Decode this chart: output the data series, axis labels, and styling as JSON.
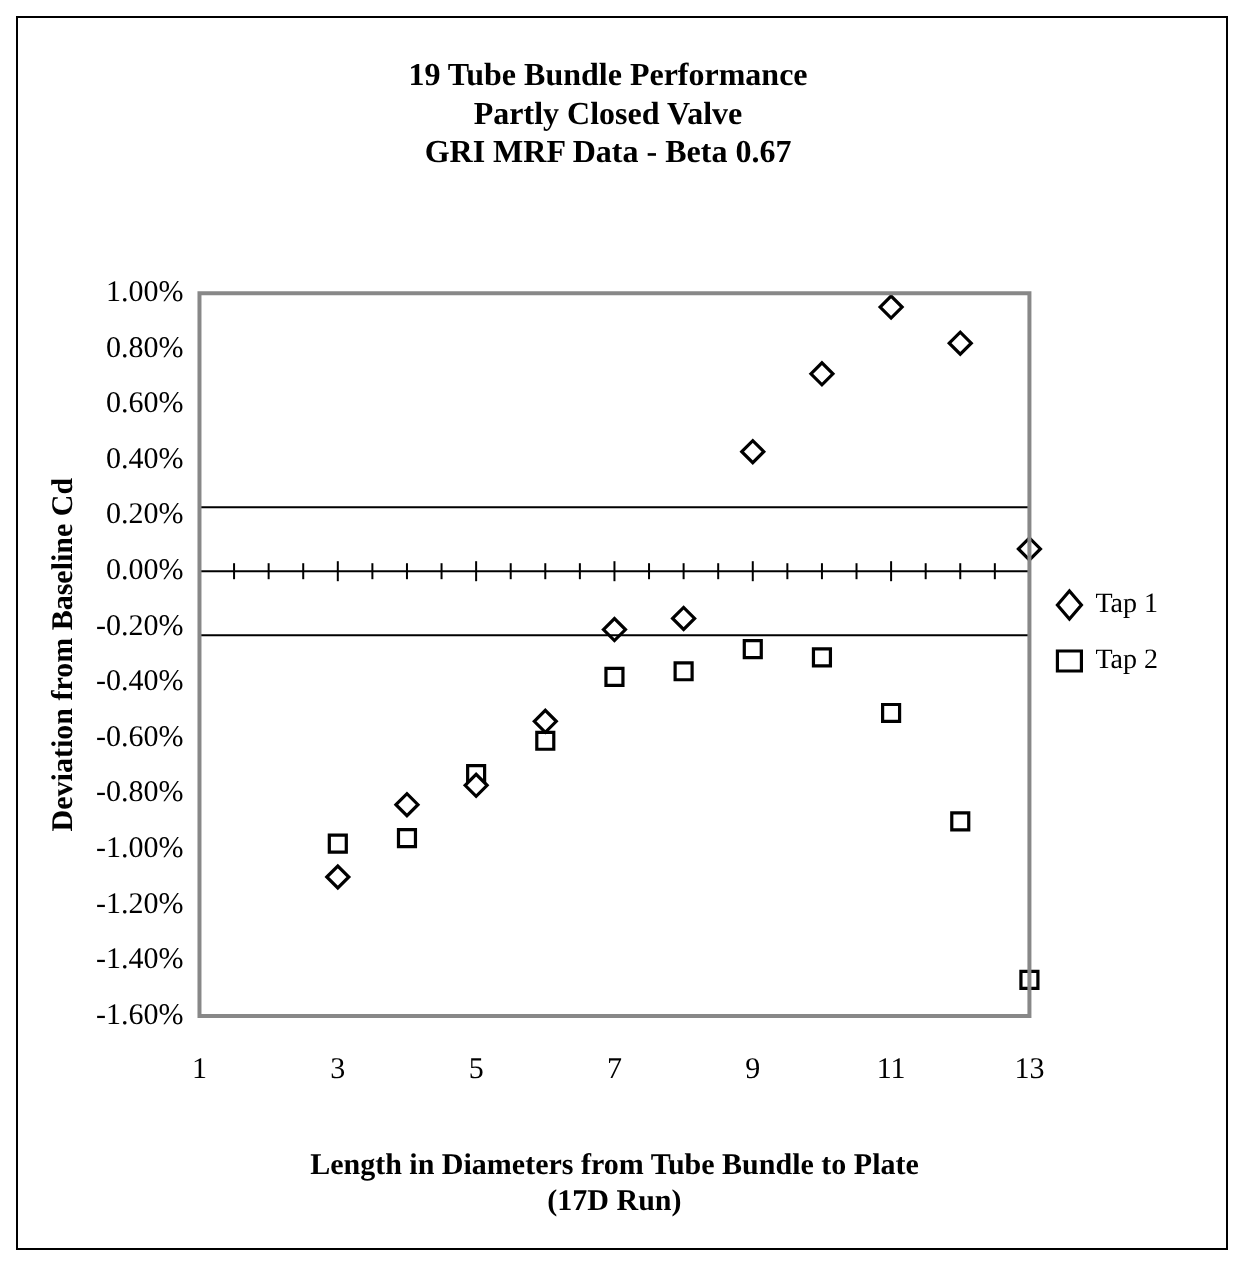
{
  "chart_data": {
    "type": "scatter",
    "title": "19 Tube Bundle Performance\nPartly Closed Valve\nGRI MRF Data - Beta 0.67",
    "xlabel": "Length in Diameters from Tube Bundle to Plate\n(17D Run)",
    "ylabel": "Deviation from Baseline Cd",
    "x": [
      3,
      4,
      5,
      6,
      7,
      8,
      9,
      10,
      11,
      12,
      13
    ],
    "series": [
      {
        "name": "Tap 1",
        "color": "#000000",
        "marker": "diamond",
        "values": [
          -1.1,
          -0.84,
          -0.77,
          -0.54,
          -0.21,
          -0.17,
          0.43,
          0.71,
          0.95,
          0.82,
          0.08
        ]
      },
      {
        "name": "Tap 2",
        "color": "#000000",
        "marker": "square",
        "values": [
          -0.98,
          -0.96,
          -0.73,
          -0.61,
          -0.38,
          -0.36,
          -0.28,
          -0.31,
          -0.51,
          -0.9,
          -1.47
        ]
      }
    ],
    "xlim": [
      1,
      13
    ],
    "xticks": [
      1,
      3,
      5,
      7,
      9,
      11,
      13
    ],
    "ylim": [
      -1.6,
      1.0
    ],
    "yticks": [
      {
        "value": -1.6,
        "label": "-1.60%"
      },
      {
        "value": -1.4,
        "label": "-1.40%"
      },
      {
        "value": -1.2,
        "label": "-1.20%"
      },
      {
        "value": -1.0,
        "label": "-1.00%"
      },
      {
        "value": -0.8,
        "label": "-0.80%"
      },
      {
        "value": -0.6,
        "label": "-0.60%"
      },
      {
        "value": -0.4,
        "label": "-0.40%"
      },
      {
        "value": -0.2,
        "label": "-0.20%"
      },
      {
        "value": 0,
        "label": "0.00%"
      },
      {
        "value": 0.2,
        "label": "0.20%"
      },
      {
        "value": 0.4,
        "label": "0.40%"
      },
      {
        "value": 0.6,
        "label": "0.60%"
      },
      {
        "value": 0.8,
        "label": "0.80%"
      },
      {
        "value": 1.0,
        "label": "1.00%"
      }
    ],
    "ref_lines": [
      {
        "axis": "y",
        "value": 0.23,
        "color": "#000000"
      },
      {
        "axis": "y",
        "value": -0.23,
        "color": "#000000"
      }
    ],
    "legend": "right"
  }
}
